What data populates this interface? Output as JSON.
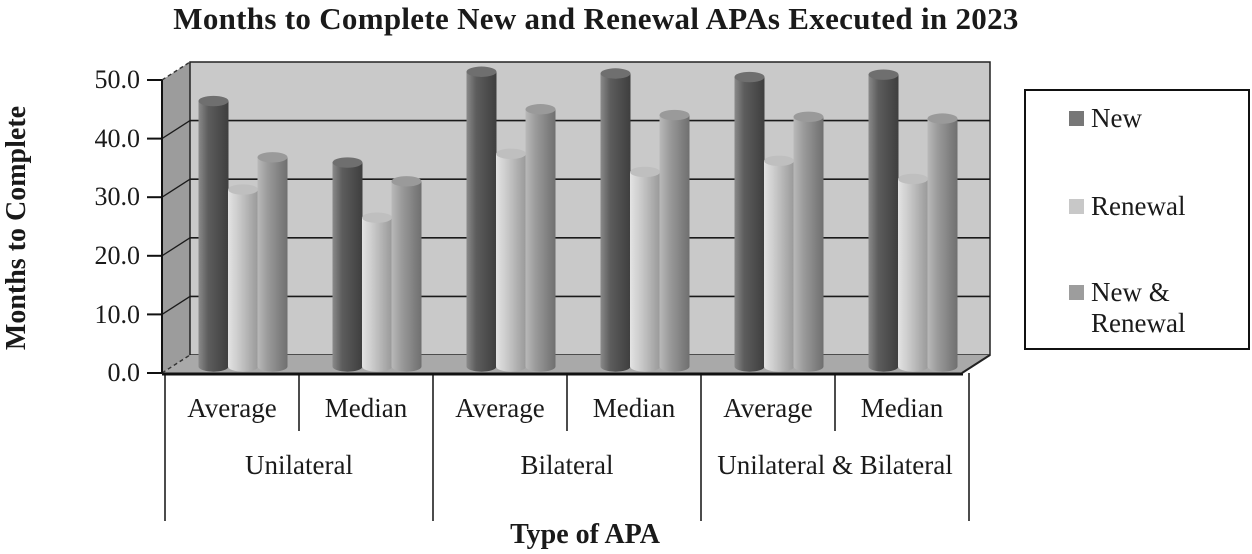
{
  "title": "Months to Complete New and Renewal APAs Executed in 2023",
  "y_axis": {
    "label": "Months to Complete",
    "ticks": [
      "50.0",
      "40.0",
      "30.0",
      "20.0",
      "10.0",
      "0.0"
    ]
  },
  "x_axis": {
    "title": "Type of APA",
    "sub_labels": [
      "Average",
      "Median",
      "Average",
      "Median",
      "Average",
      "Median"
    ],
    "group_labels": [
      "Unilateral",
      "Bilateral",
      "Unilateral & Bilateral"
    ]
  },
  "legend": {
    "position": "right",
    "items": [
      {
        "label": "New",
        "color": "#777777"
      },
      {
        "label": "Renewal",
        "color": "#c8c8c8"
      },
      {
        "label": "New & Renewal",
        "color": "#9d9d9d"
      }
    ]
  },
  "chart_data": {
    "type": "bar",
    "style": "3d-cylinder",
    "title": "Months to Complete New and Renewal APAs Executed in 2023",
    "xlabel": "Type of APA",
    "ylabel": "Months to Complete",
    "ylim": [
      0,
      50
    ],
    "ytick_step": 10,
    "grid": true,
    "legend_position": "right",
    "categories": [
      "Unilateral Average",
      "Unilateral Median",
      "Bilateral Average",
      "Bilateral Median",
      "Unilateral & Bilateral Average",
      "Unilateral & Bilateral Median"
    ],
    "series": [
      {
        "name": "New",
        "values": [
          45.3,
          34.8,
          50.3,
          50.0,
          49.4,
          49.8
        ]
      },
      {
        "name": "Renewal",
        "values": [
          30.2,
          25.4,
          36.3,
          33.2,
          35.1,
          32.0
        ]
      },
      {
        "name": "New & Renewal",
        "values": [
          35.7,
          31.6,
          43.9,
          42.9,
          42.6,
          42.3
        ]
      }
    ]
  },
  "colors": {
    "back_wall": "#c9c9c9",
    "side_wall": "#9c9c9c",
    "floor": "#a9a9a9",
    "gridline": "#1a1a1a",
    "frame": "#222222",
    "axis": "#111111",
    "text": "#1a1a1a",
    "series_styles": [
      {
        "body": [
          "#8a8a8a",
          "#5d5d5d",
          "#3e3e3e"
        ],
        "top": "#6f6f6f"
      },
      {
        "body": [
          "#e3e3e3",
          "#cdcdcd",
          "#999999"
        ],
        "top": "#bfbfbf"
      },
      {
        "body": [
          "#b9b9b9",
          "#9c9c9c",
          "#6f6f6f"
        ],
        "top": "#9a9a9a"
      }
    ]
  }
}
